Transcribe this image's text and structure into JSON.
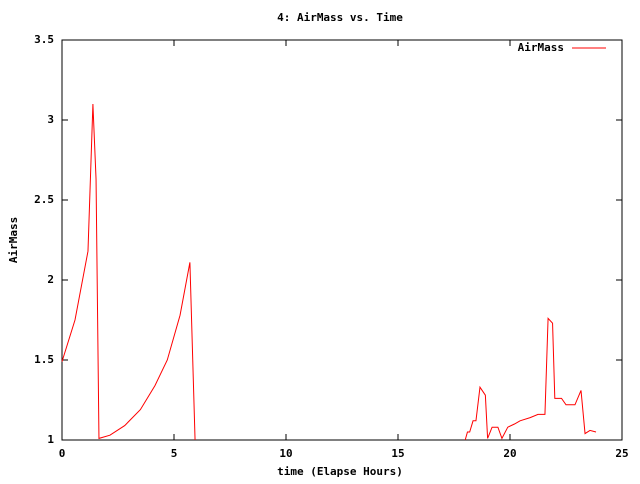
{
  "chart_data": {
    "type": "line",
    "title": "4: AirMass vs. Time",
    "x_label": "time (Elapse Hours)",
    "y_label": "AirMass",
    "x": [
      0,
      0.58,
      1.16,
      1.38,
      1.52,
      1.65,
      2.14,
      2.8,
      3.5,
      4.15,
      4.7,
      5.27,
      5.71,
      5.94,
      12,
      18.0,
      18.1,
      18.2,
      18.35,
      18.48,
      18.66,
      18.9,
      19.0,
      19.2,
      19.46,
      19.64,
      19.9,
      20.2,
      20.45,
      20.9,
      21.25,
      21.56,
      21.7,
      21.9,
      22.0,
      22.3,
      22.5,
      22.9,
      23.17,
      23.35,
      23.57,
      23.84
    ],
    "series": [
      {
        "name": "AirMass",
        "color": "#ff0000",
        "values": [
          1.49,
          1.75,
          2.18,
          3.1,
          2.63,
          1.01,
          1.03,
          1.09,
          1.19,
          1.34,
          1.5,
          1.78,
          2.11,
          1.0,
          null,
          1.0,
          1.05,
          1.05,
          1.12,
          1.12,
          1.33,
          1.28,
          1.01,
          1.08,
          1.08,
          1.01,
          1.08,
          1.1,
          1.12,
          1.14,
          1.16,
          1.16,
          1.76,
          1.73,
          1.26,
          1.26,
          1.22,
          1.22,
          1.31,
          1.04,
          1.06,
          1.05
        ]
      }
    ],
    "xlim": [
      0,
      25
    ],
    "xticks": [
      0,
      5,
      10,
      15,
      20,
      25
    ],
    "ylim": [
      1,
      3.5
    ],
    "yticks": [
      1,
      1.5,
      2,
      2.5,
      3,
      3.5
    ],
    "grid": false,
    "legend": "top-right"
  }
}
